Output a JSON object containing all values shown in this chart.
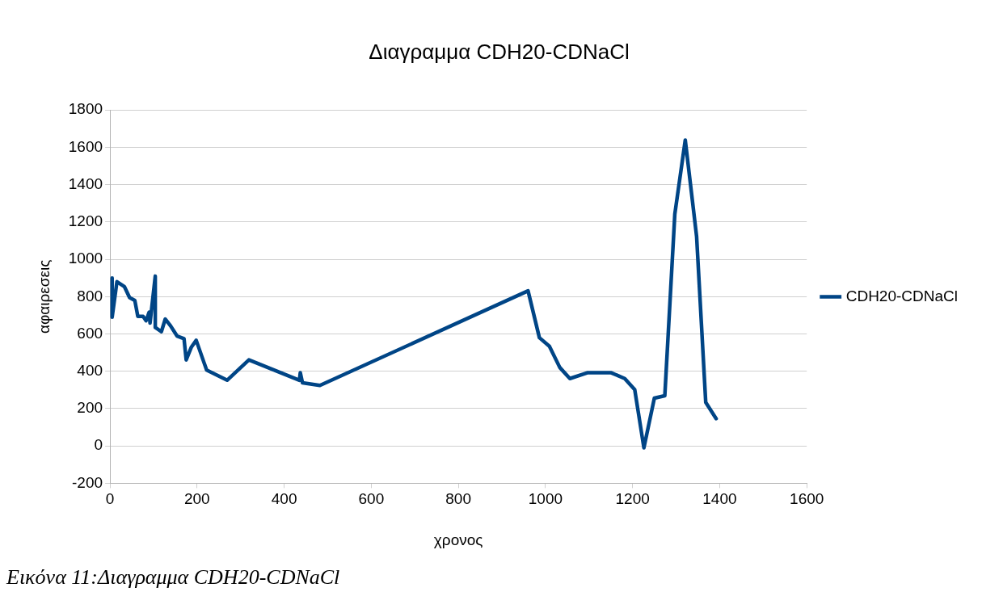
{
  "chart_data": {
    "type": "line",
    "title": "Διαγραμμα CDH20-CDNaCl",
    "xlabel": "χρονος",
    "ylabel": "αφαιρεσεις",
    "x": [
      5,
      5,
      16,
      33,
      45,
      57,
      64,
      76,
      83,
      90,
      92,
      104,
      104,
      118,
      127,
      139,
      154,
      170,
      175,
      187,
      198,
      222,
      269,
      319,
      435,
      437,
      442,
      482,
      960,
      986,
      1009,
      1033,
      1056,
      1096,
      1151,
      1182,
      1205,
      1226,
      1250,
      1274,
      1297,
      1321,
      1347,
      1368,
      1392
    ],
    "series": [
      {
        "name": "CDH20-CDNaCl",
        "color": "#004586",
        "values": [
          900,
          690,
          880,
          854,
          795,
          780,
          694,
          694,
          671,
          717,
          658,
          910,
          635,
          612,
          680,
          644,
          589,
          575,
          461,
          530,
          566,
          406,
          352,
          461,
          352,
          392,
          338,
          324,
          831,
          580,
          534,
          420,
          361,
          392,
          392,
          361,
          301,
          -10,
          256,
          269,
          1242,
          1639,
          1123,
          233,
          146
        ]
      }
    ],
    "xlim": [
      0,
      1600
    ],
    "xticks": [
      0,
      200,
      400,
      600,
      800,
      1000,
      1200,
      1400,
      1600
    ],
    "ylim": [
      -200,
      1800
    ],
    "yticks": [
      -200,
      0,
      200,
      400,
      600,
      800,
      1000,
      1200,
      1400,
      1600,
      1800
    ],
    "grid": "y",
    "legend": "right",
    "marker": "none",
    "line_style": "solid",
    "annotations": [
      "Εικόνα 11:Διαγραμμα CDH20-CDNaCl"
    ]
  }
}
